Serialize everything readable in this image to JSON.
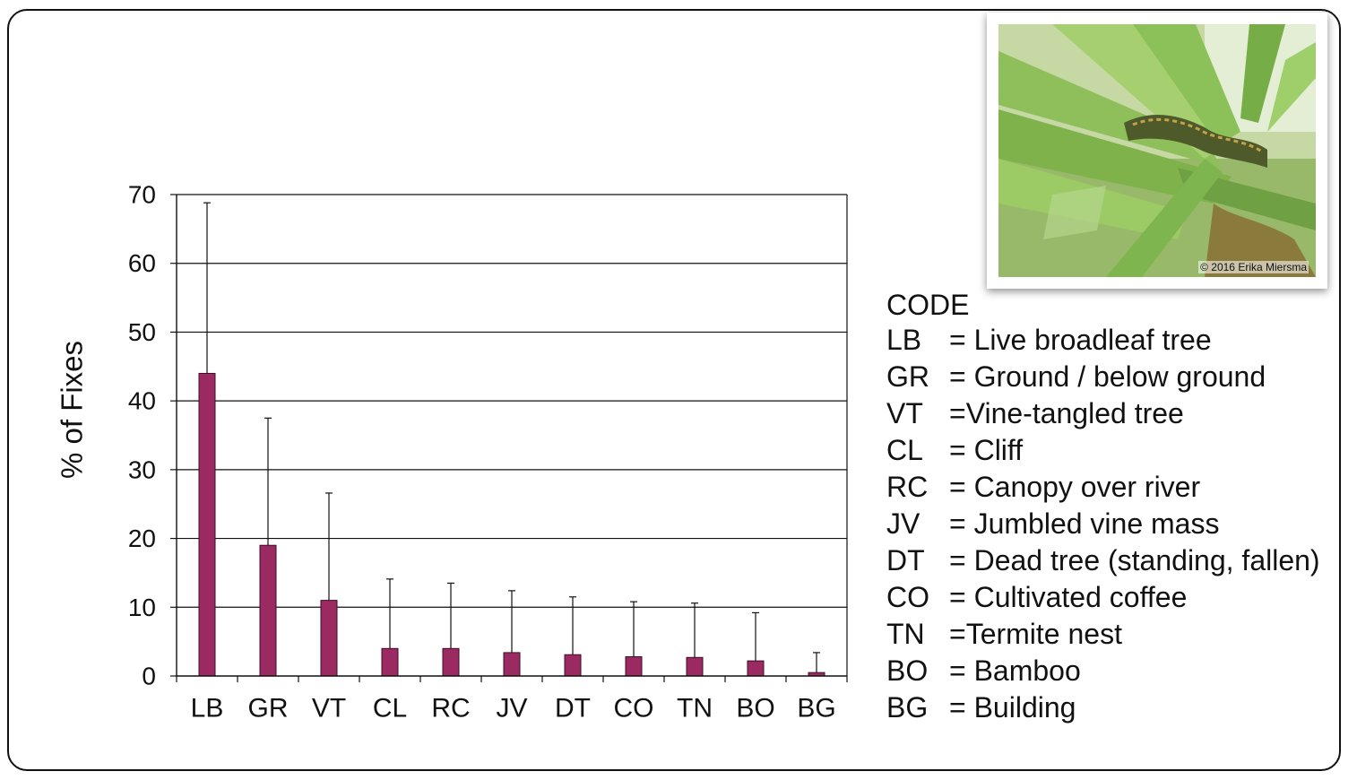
{
  "chart_data": {
    "type": "bar",
    "title": "",
    "xlabel": "",
    "ylabel": "% of Fixes",
    "ylim": [
      0,
      70
    ],
    "yticks": [
      0,
      10,
      20,
      30,
      40,
      50,
      60,
      70
    ],
    "grid": true,
    "categories": [
      "LB",
      "GR",
      "VT",
      "CL",
      "RC",
      "JV",
      "DT",
      "CO",
      "TN",
      "BO",
      "BG"
    ],
    "values": [
      44,
      19,
      11,
      4,
      4,
      3.4,
      3.1,
      2.8,
      2.7,
      2.2,
      0.5
    ],
    "error_upper": [
      68.8,
      37.5,
      26.6,
      14.1,
      13.5,
      12.4,
      11.5,
      10.8,
      10.6,
      9.2,
      3.4
    ],
    "bar_color": "#9b2a63"
  },
  "photo": {
    "credit": "© 2016 Erika Miersma",
    "subject": "snake-in-bromeliad"
  },
  "legend": {
    "title": "CODE",
    "entries": [
      {
        "code": "LB",
        "desc": "= Live broadleaf tree"
      },
      {
        "code": "GR",
        "desc": "= Ground / below ground"
      },
      {
        "code": "VT",
        "desc": "=Vine-tangled tree"
      },
      {
        "code": "CL",
        "desc": "= Cliff"
      },
      {
        "code": "RC",
        "desc": "= Canopy over river"
      },
      {
        "code": "JV",
        "desc": "= Jumbled vine mass"
      },
      {
        "code": "DT",
        "desc": "= Dead tree (standing, fallen)"
      },
      {
        "code": "CO",
        "desc": "= Cultivated coffee"
      },
      {
        "code": "TN",
        "desc": "=Termite nest"
      },
      {
        "code": "BO",
        "desc": "= Bamboo"
      },
      {
        "code": "BG",
        "desc": "= Building"
      }
    ]
  }
}
